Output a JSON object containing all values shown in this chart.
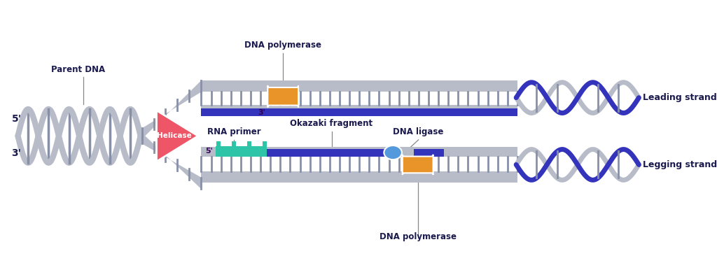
{
  "bg_color": "#ffffff",
  "gray": "#b8bcc8",
  "gray_dark": "#8890a8",
  "gray_light": "#c8ccd8",
  "blue": "#3333bb",
  "orange": "#e89428",
  "teal": "#2ec4a8",
  "blue_oval": "#5599dd",
  "red": "#ee5566",
  "label_col": "#1a1a4e",
  "labels": {
    "parent_dna": "Parent DNA",
    "helicase": "Helicase",
    "dna_pol_top": "DNA polymerase",
    "dna_pol_bot": "DNA polymerase",
    "rna_primer": "RNA primer",
    "okazaki": "Okazaki fragment",
    "dna_ligase": "DNA ligase",
    "leading": "Leading strand",
    "lagging": "Legging strand",
    "five_l": "5'",
    "three_l": "3'",
    "three_top": "3'",
    "five_bot": "5'"
  }
}
